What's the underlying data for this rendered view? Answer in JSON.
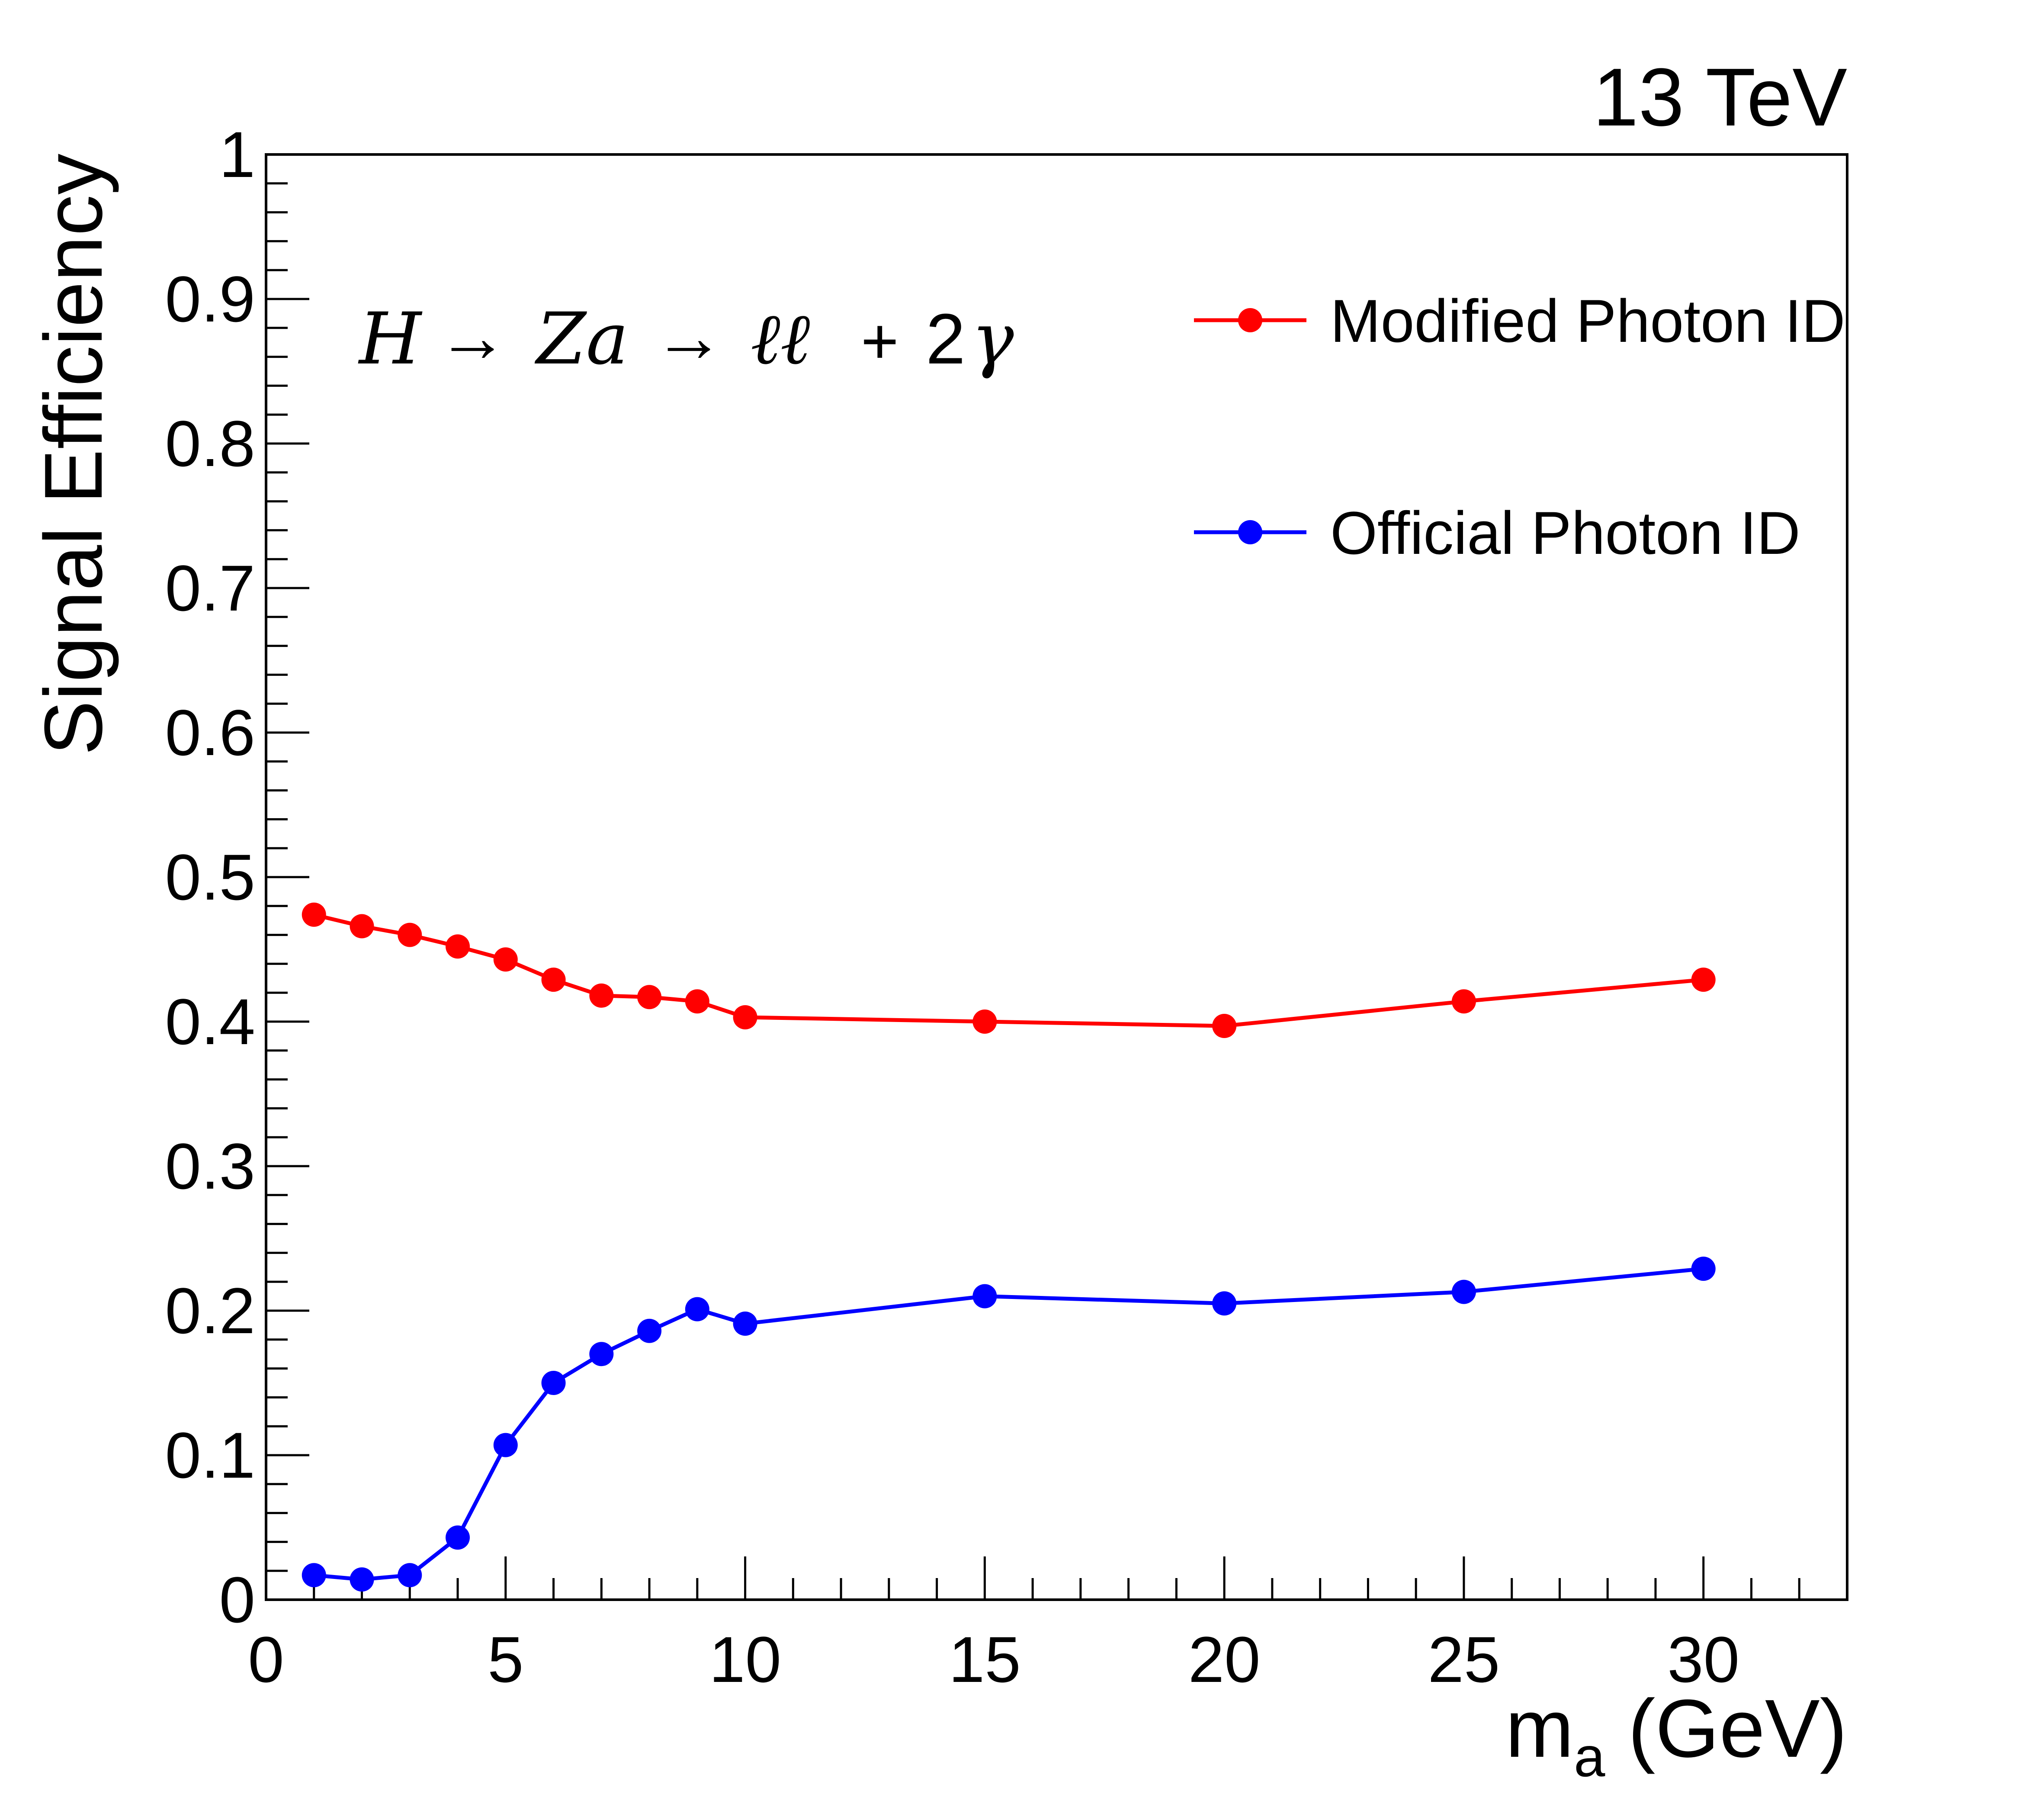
{
  "chart_data": {
    "type": "line",
    "energy_label": "13 TeV",
    "process_label": {
      "H": "H",
      "arrow1": "→",
      "Za": "Za",
      "arrow2": "→",
      "ll": "ℓℓ",
      "plus": "+",
      "two": "2",
      "gamma": "γ"
    },
    "ylabel": "Signal Efficiency",
    "xlabel": {
      "main": "m",
      "sub": "a",
      "unit": " (GeV)"
    },
    "xlim": [
      0,
      33
    ],
    "ylim": [
      0,
      1
    ],
    "x_ticks": [
      0,
      5,
      10,
      15,
      20,
      25,
      30
    ],
    "x_tick_labels": [
      "0",
      "5",
      "10",
      "15",
      "20",
      "25",
      "30"
    ],
    "y_ticks": [
      0,
      0.1,
      0.2,
      0.3,
      0.4,
      0.5,
      0.6,
      0.7,
      0.8,
      0.9,
      1
    ],
    "y_tick_labels": [
      "0",
      "0.1",
      "0.2",
      "0.3",
      "0.4",
      "0.5",
      "0.6",
      "0.7",
      "0.8",
      "0.9",
      "1"
    ],
    "legend_position": "top-right",
    "grid": false,
    "series": [
      {
        "name": "Modified Photon ID",
        "color": "#ff0000",
        "x": [
          1,
          2,
          3,
          4,
          5,
          6,
          7,
          8,
          9,
          10,
          15,
          20,
          25,
          30
        ],
        "y": [
          0.474,
          0.466,
          0.46,
          0.452,
          0.443,
          0.429,
          0.418,
          0.417,
          0.414,
          0.403,
          0.4,
          0.397,
          0.414,
          0.429
        ]
      },
      {
        "name": "Official Photon ID",
        "color": "#0000ff",
        "x": [
          1,
          2,
          3,
          4,
          5,
          6,
          7,
          8,
          9,
          10,
          15,
          20,
          25,
          30
        ],
        "y": [
          0.017,
          0.014,
          0.017,
          0.043,
          0.107,
          0.15,
          0.17,
          0.186,
          0.201,
          0.191,
          0.21,
          0.205,
          0.213,
          0.229
        ]
      }
    ]
  }
}
